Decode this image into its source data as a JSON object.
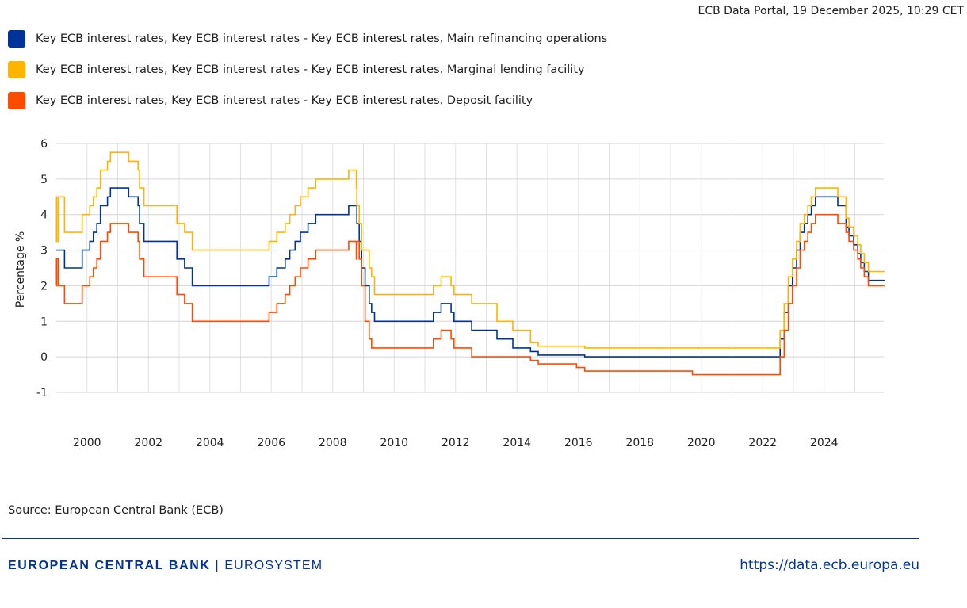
{
  "header": {
    "timestamp": "ECB Data Portal, 19 December 2025, 10:29 CET"
  },
  "source": "Source: European Central Bank (ECB)",
  "footer": {
    "logo_main": "EUROPEAN CENTRAL BANK",
    "logo_sub": "EUROSYSTEM",
    "url": "https://data.ecb.europa.eu"
  },
  "chart_data": {
    "type": "line",
    "step": true,
    "ylabel": "Percentage %",
    "xlabel": "",
    "ylim": [
      -1,
      6
    ],
    "yticks": [
      "-1",
      "0",
      "1",
      "2",
      "3",
      "4",
      "5",
      "6"
    ],
    "xticks": [
      "2000",
      "2002",
      "2004",
      "2006",
      "2008",
      "2010",
      "2012",
      "2014",
      "2016",
      "2018",
      "2020",
      "2022",
      "2024"
    ],
    "xrange": [
      "1999-01-01",
      "2025-12-19"
    ],
    "grid": true,
    "legend_position": "top-left",
    "series": [
      {
        "name": "Key ECB interest rates, Key ECB interest rates - Key ECB interest rates, Main refinancing operations",
        "color": "#003299",
        "key": "mro"
      },
      {
        "name": "Key ECB interest rates, Key ECB interest rates - Key ECB interest rates, Marginal lending facility",
        "color": "#FFB400",
        "key": "mlf"
      },
      {
        "name": "Key ECB interest rates, Key ECB interest rates - Key ECB interest rates, Deposit facility",
        "color": "#FF4B00",
        "key": "df"
      }
    ],
    "changes": [
      [
        "1999-01-01",
        3.0,
        4.5,
        2.0
      ],
      [
        "1999-01-04",
        3.0,
        3.25,
        2.75
      ],
      [
        "1999-01-22",
        3.0,
        4.5,
        2.0
      ],
      [
        "1999-04-09",
        2.5,
        3.5,
        1.5
      ],
      [
        "1999-11-05",
        3.0,
        4.0,
        2.0
      ],
      [
        "2000-02-04",
        3.25,
        4.25,
        2.25
      ],
      [
        "2000-03-17",
        3.5,
        4.5,
        2.5
      ],
      [
        "2000-04-28",
        3.75,
        4.75,
        2.75
      ],
      [
        "2000-06-09",
        4.25,
        5.25,
        3.25
      ],
      [
        "2000-09-01",
        4.5,
        5.5,
        3.5
      ],
      [
        "2000-10-06",
        4.75,
        5.75,
        3.75
      ],
      [
        "2001-05-11",
        4.5,
        5.5,
        3.5
      ],
      [
        "2001-08-31",
        4.25,
        5.25,
        3.25
      ],
      [
        "2001-09-18",
        3.75,
        4.75,
        2.75
      ],
      [
        "2001-11-09",
        3.25,
        4.25,
        2.25
      ],
      [
        "2002-12-06",
        2.75,
        3.75,
        1.75
      ],
      [
        "2003-03-07",
        2.5,
        3.5,
        1.5
      ],
      [
        "2003-06-06",
        2.0,
        3.0,
        1.0
      ],
      [
        "2005-12-06",
        2.25,
        3.25,
        1.25
      ],
      [
        "2006-03-08",
        2.5,
        3.5,
        1.5
      ],
      [
        "2006-06-15",
        2.75,
        3.75,
        1.75
      ],
      [
        "2006-08-09",
        3.0,
        4.0,
        2.0
      ],
      [
        "2006-10-11",
        3.25,
        4.25,
        2.25
      ],
      [
        "2006-12-13",
        3.5,
        4.5,
        2.5
      ],
      [
        "2007-03-14",
        3.75,
        4.75,
        2.75
      ],
      [
        "2007-06-13",
        4.0,
        5.0,
        3.0
      ],
      [
        "2008-07-09",
        4.25,
        5.25,
        3.25
      ],
      [
        "2008-10-09",
        4.25,
        4.75,
        2.75
      ],
      [
        "2008-10-15",
        3.75,
        4.25,
        3.25
      ],
      [
        "2008-11-12",
        3.25,
        3.75,
        2.75
      ],
      [
        "2008-12-10",
        2.5,
        3.0,
        2.0
      ],
      [
        "2009-01-21",
        2.0,
        3.0,
        1.0
      ],
      [
        "2009-03-11",
        1.5,
        2.5,
        0.5
      ],
      [
        "2009-04-08",
        1.25,
        2.25,
        0.25
      ],
      [
        "2009-05-13",
        1.0,
        1.75,
        0.25
      ],
      [
        "2011-04-13",
        1.25,
        2.0,
        0.5
      ],
      [
        "2011-07-13",
        1.5,
        2.25,
        0.75
      ],
      [
        "2011-11-09",
        1.25,
        2.0,
        0.5
      ],
      [
        "2011-12-14",
        1.0,
        1.75,
        0.25
      ],
      [
        "2012-07-11",
        0.75,
        1.5,
        0.0
      ],
      [
        "2013-05-08",
        0.5,
        1.0,
        0.0
      ],
      [
        "2013-11-13",
        0.25,
        0.75,
        0.0
      ],
      [
        "2014-06-11",
        0.15,
        0.4,
        -0.1
      ],
      [
        "2014-09-10",
        0.05,
        0.3,
        -0.2
      ],
      [
        "2015-12-09",
        0.05,
        0.3,
        -0.3
      ],
      [
        "2016-03-16",
        0.0,
        0.25,
        -0.4
      ],
      [
        "2019-09-18",
        0.0,
        0.25,
        -0.5
      ],
      [
        "2022-07-27",
        0.5,
        0.75,
        0.0
      ],
      [
        "2022-09-14",
        1.25,
        1.5,
        0.75
      ],
      [
        "2022-11-02",
        2.0,
        2.25,
        1.5
      ],
      [
        "2022-12-21",
        2.5,
        2.75,
        2.0
      ],
      [
        "2023-02-08",
        3.0,
        3.25,
        2.5
      ],
      [
        "2023-03-22",
        3.5,
        3.75,
        3.0
      ],
      [
        "2023-05-10",
        3.75,
        4.0,
        3.25
      ],
      [
        "2023-06-21",
        4.0,
        4.25,
        3.5
      ],
      [
        "2023-08-02",
        4.25,
        4.5,
        3.75
      ],
      [
        "2023-09-20",
        4.5,
        4.75,
        4.0
      ],
      [
        "2024-06-12",
        4.25,
        4.5,
        3.75
      ],
      [
        "2024-09-18",
        3.65,
        3.9,
        3.5
      ],
      [
        "2024-10-23",
        3.4,
        3.65,
        3.25
      ],
      [
        "2024-12-18",
        3.15,
        3.4,
        3.0
      ],
      [
        "2025-02-05",
        2.9,
        3.15,
        2.75
      ],
      [
        "2025-03-12",
        2.65,
        2.9,
        2.5
      ],
      [
        "2025-04-23",
        2.4,
        2.65,
        2.25
      ],
      [
        "2025-06-11",
        2.15,
        2.4,
        2.0
      ]
    ]
  }
}
